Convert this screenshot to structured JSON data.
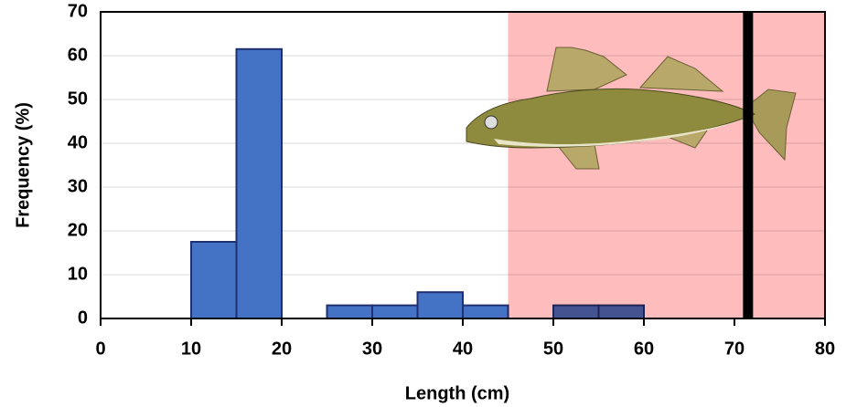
{
  "chart_data": {
    "type": "histogram",
    "x_label": "Length (cm)",
    "y_label": "Frequency (%)",
    "bins": [
      10,
      15,
      20,
      25,
      30,
      35,
      40,
      45,
      50,
      55,
      60
    ],
    "values": [
      17.5,
      61.5,
      0,
      3,
      3,
      6,
      3,
      0,
      3,
      3
    ],
    "color": "#4472c4",
    "edge_color": "#1f2f70",
    "xlim": [
      0,
      80
    ],
    "xticks": [
      0,
      10,
      20,
      30,
      40,
      50,
      60,
      70,
      80
    ],
    "ylim": [
      0,
      70
    ],
    "yticks": [
      0,
      10,
      20,
      30,
      40,
      50,
      60,
      70
    ],
    "grid": true,
    "shaded_range": [
      45,
      80
    ],
    "shade_color": "#ffbcbc",
    "reference_line": 71.5,
    "reference_color": "#000000"
  }
}
